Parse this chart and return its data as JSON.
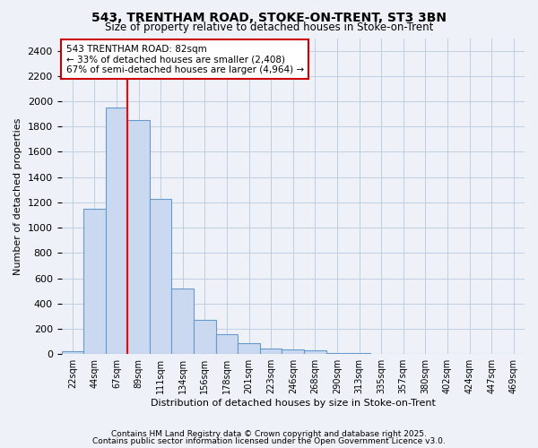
{
  "title1": "543, TRENTHAM ROAD, STOKE-ON-TRENT, ST3 3BN",
  "title2": "Size of property relative to detached houses in Stoke-on-Trent",
  "xlabel": "Distribution of detached houses by size in Stoke-on-Trent",
  "ylabel": "Number of detached properties",
  "bin_labels": [
    "22sqm",
    "44sqm",
    "67sqm",
    "89sqm",
    "111sqm",
    "134sqm",
    "156sqm",
    "178sqm",
    "201sqm",
    "223sqm",
    "246sqm",
    "268sqm",
    "290sqm",
    "313sqm",
    "335sqm",
    "357sqm",
    "380sqm",
    "402sqm",
    "424sqm",
    "447sqm",
    "469sqm"
  ],
  "bar_values": [
    25,
    1150,
    1950,
    1850,
    1225,
    520,
    270,
    155,
    90,
    45,
    35,
    28,
    12,
    8,
    4,
    3,
    2,
    2,
    1,
    1,
    0
  ],
  "bar_color": "#cad9ef",
  "bar_edge_color": "#6699cc",
  "red_line_x": 2.5,
  "annotation_text_line1": "543 TRENTHAM ROAD: 82sqm",
  "annotation_text_line2": "← 33% of detached houses are smaller (2,408)",
  "annotation_text_line3": "67% of semi-detached houses are larger (4,964) →",
  "annotation_box_color": "#ffffff",
  "annotation_box_edge": "#cc0000",
  "ylim": [
    0,
    2500
  ],
  "yticks": [
    0,
    200,
    400,
    600,
    800,
    1000,
    1200,
    1400,
    1600,
    1800,
    2000,
    2200,
    2400
  ],
  "grid_color": "#c0cfe0",
  "bg_color": "#eef2f8",
  "footer1": "Contains HM Land Registry data © Crown copyright and database right 2025.",
  "footer2": "Contains public sector information licensed under the Open Government Licence v3.0."
}
